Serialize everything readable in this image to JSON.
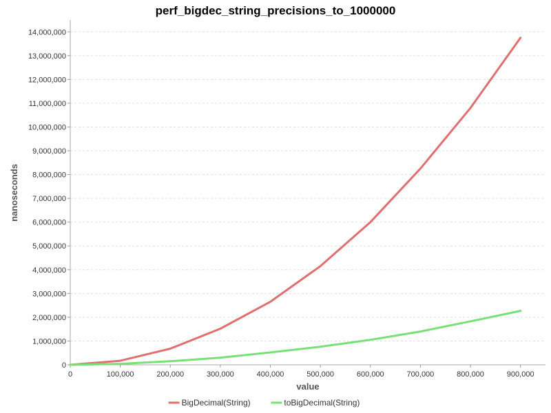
{
  "chart_data": {
    "type": "line",
    "title": "perf_bigdec_string_precisions_to_1000000",
    "xlabel": "value",
    "ylabel": "nanoseconds",
    "xlim": [
      0,
      950000
    ],
    "ylim": [
      0,
      14500000
    ],
    "x_ticks": [
      0,
      100000,
      200000,
      300000,
      400000,
      500000,
      600000,
      700000,
      800000,
      900000
    ],
    "x_tick_labels": [
      "0",
      "100,000",
      "200,000",
      "300,000",
      "400,000",
      "500,000",
      "600,000",
      "700,000",
      "800,000",
      "900,000"
    ],
    "y_ticks": [
      0,
      1000000,
      2000000,
      3000000,
      4000000,
      5000000,
      6000000,
      7000000,
      8000000,
      9000000,
      10000000,
      11000000,
      12000000,
      13000000,
      14000000
    ],
    "y_tick_labels": [
      "0",
      "1,000,000",
      "2,000,000",
      "3,000,000",
      "4,000,000",
      "5,000,000",
      "6,000,000",
      "7,000,000",
      "8,000,000",
      "9,000,000",
      "10,000,000",
      "11,000,000",
      "12,000,000",
      "13,000,000",
      "14,000,000"
    ],
    "grid": "horizontal",
    "legend_position": "bottom-center",
    "x": [
      0,
      100000,
      200000,
      300000,
      400000,
      500000,
      600000,
      700000,
      800000,
      900000
    ],
    "series": [
      {
        "name": "BigDecimal(String)",
        "color": "#e07070",
        "values": [
          0,
          170000,
          680000,
          1520000,
          2650000,
          4150000,
          6000000,
          8250000,
          10800000,
          13750000
        ]
      },
      {
        "name": "toBigDecimal(String)",
        "color": "#77e077",
        "values": [
          0,
          40000,
          150000,
          300000,
          520000,
          760000,
          1050000,
          1400000,
          1830000,
          2270000
        ]
      }
    ]
  }
}
